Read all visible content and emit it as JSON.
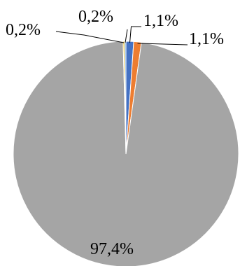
{
  "chart_data": {
    "type": "pie",
    "title": "",
    "values": [
      1.1,
      1.1,
      97.4,
      0.2,
      0.2
    ],
    "labels": [
      "1,1%",
      "1,1%",
      "97,4%",
      "0,2%",
      "0,2%"
    ],
    "colors": [
      "#4472C4",
      "#ED7D31",
      "#A5A5A5",
      "#FFC000",
      "#5B9BD5"
    ],
    "start_angle_deg": 0,
    "direction": "clockwise",
    "legend": "none"
  }
}
